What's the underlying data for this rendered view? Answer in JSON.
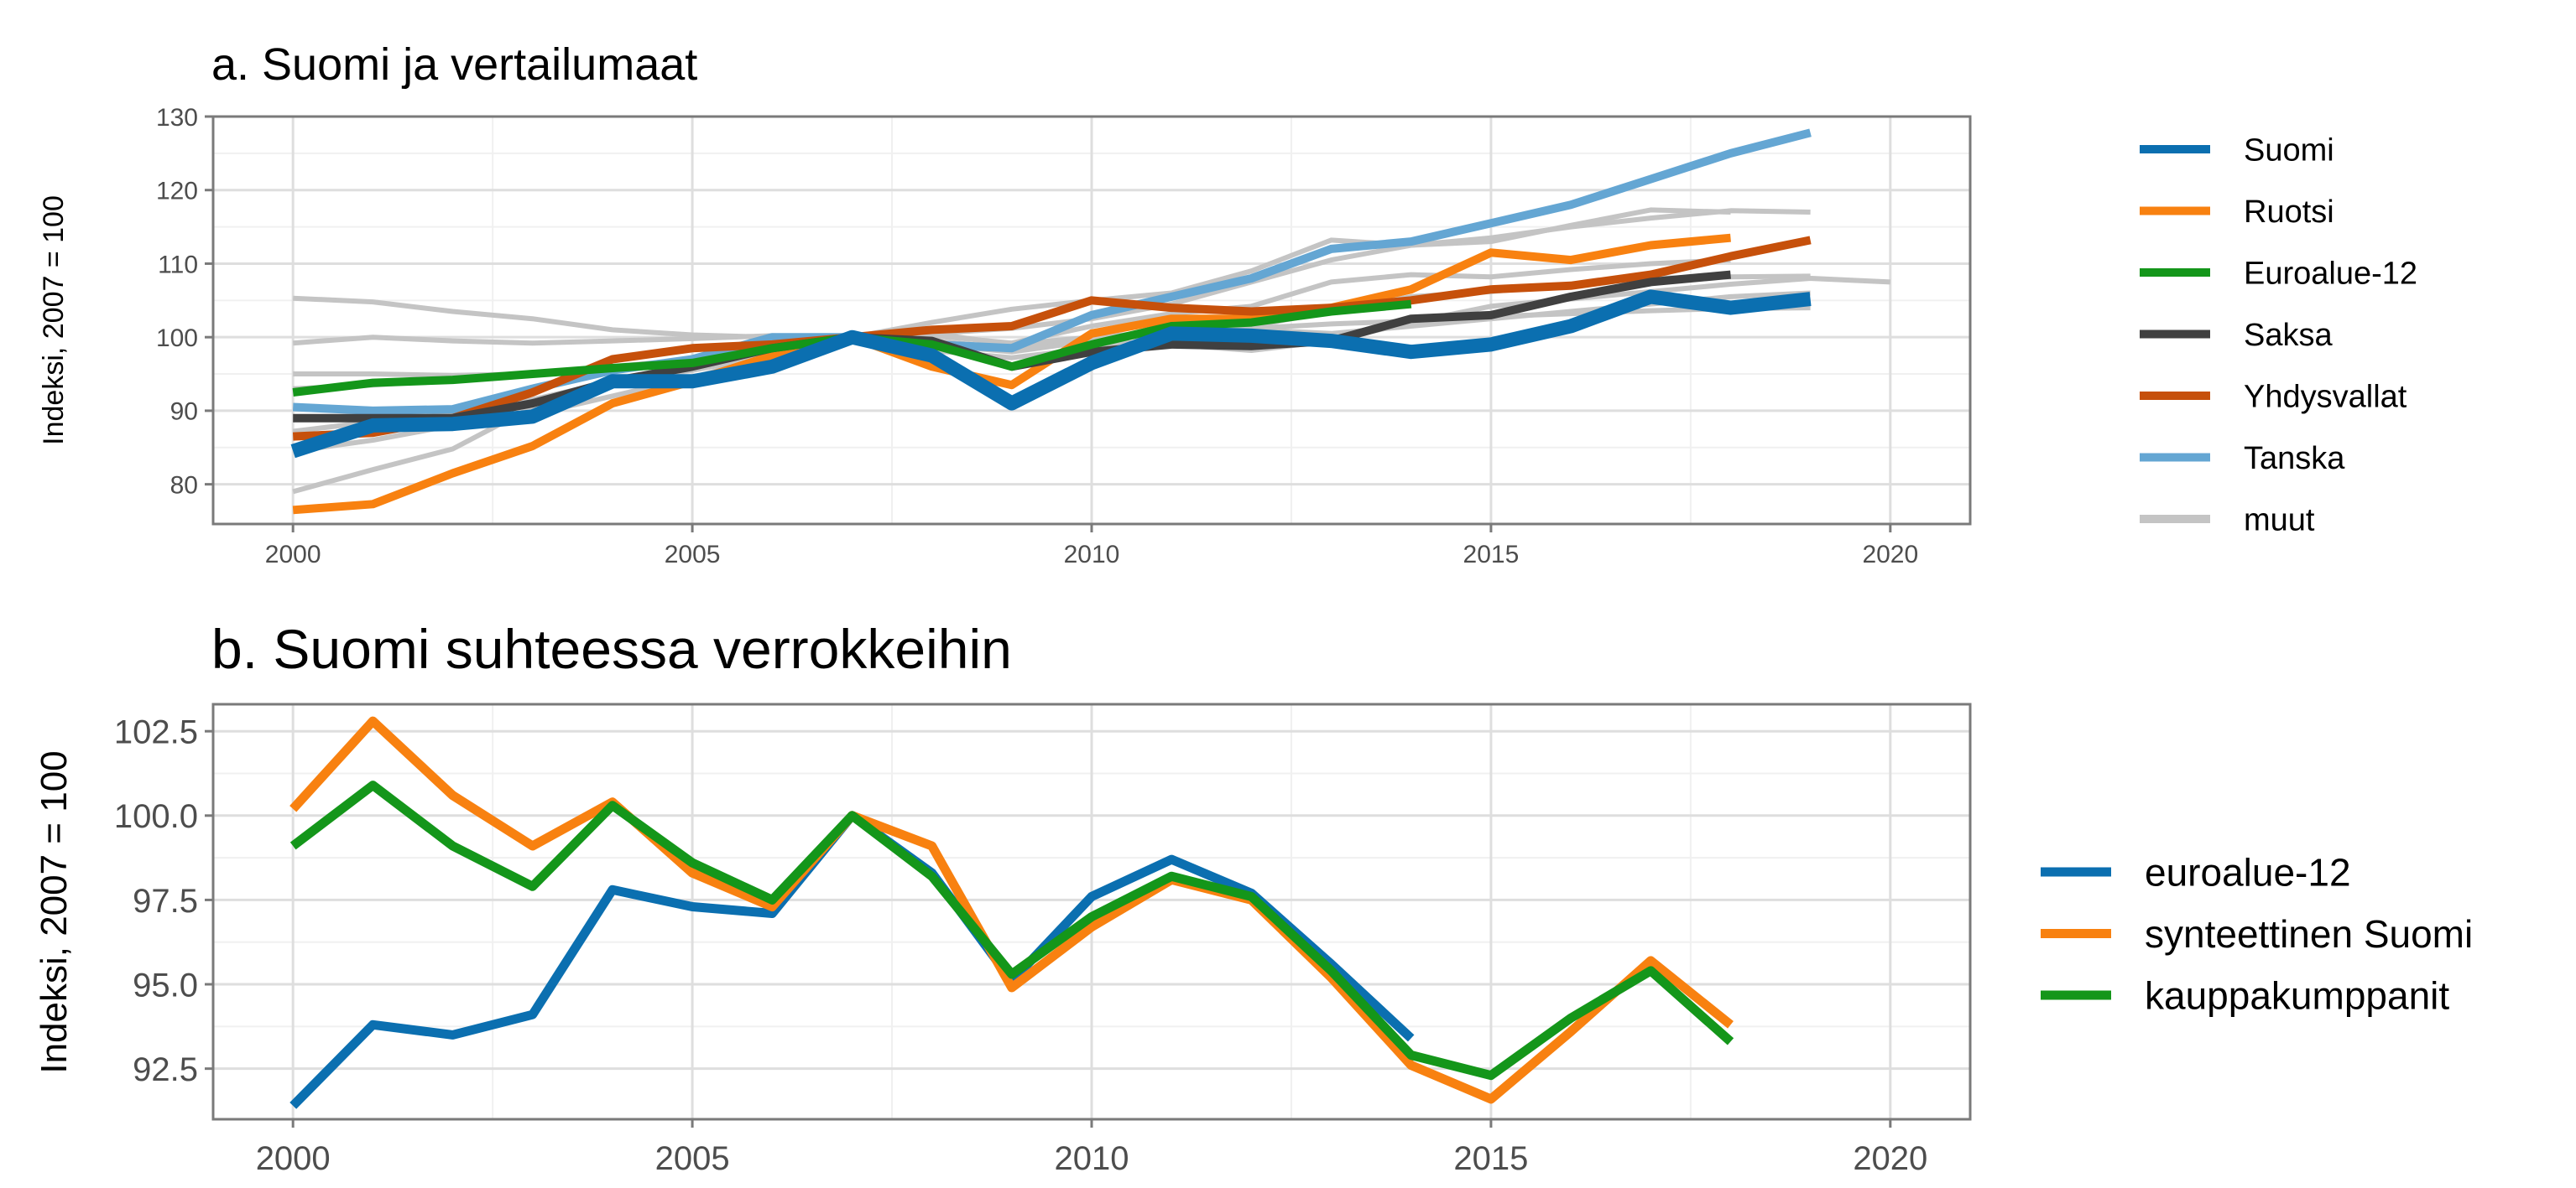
{
  "colors": {
    "Suomi": "#0b6fb0",
    "Ruotsi": "#f88110",
    "Euroalue-12": "#14961a",
    "Saksa": "#404040",
    "Yhdysvallat": "#c6500b",
    "Tanska": "#64a6d3",
    "muut": "#c4c4c4",
    "euroalue-12": "#0b6fb0",
    "synteettinen Suomi": "#f88110",
    "kauppakumppanit": "#14961a"
  },
  "chart_data": [
    {
      "type": "line",
      "title": "a. Suomi ja vertailumaat",
      "xlabel": "",
      "ylabel": "Indeksi, 2007 = 100",
      "xlim": [
        1999,
        2021
      ],
      "ylim": [
        74.6,
        130
      ],
      "xticks": [
        "2000",
        "2005",
        "2010",
        "2015",
        "2020"
      ],
      "yticks": [
        "80",
        "90",
        "100",
        "110",
        "120",
        "130"
      ],
      "grid": true,
      "legend": "right",
      "legend_entries": [
        "Suomi",
        "Ruotsi",
        "Euroalue-12",
        "Saksa",
        "Yhdysvallat",
        "Tanska",
        "muut"
      ],
      "x": [
        2000,
        2001,
        2002,
        2003,
        2004,
        2005,
        2006,
        2007,
        2008,
        2009,
        2010,
        2011,
        2012,
        2013,
        2014,
        2015,
        2016,
        2017,
        2018,
        2019,
        2020
      ],
      "background_series": [
        {
          "name": "muut",
          "values": [
            105.3,
            104.8,
            103.5,
            102.5,
            101.0,
            100.3,
            100.0,
            100.0,
            99.5,
            98.5,
            99.5,
            99.0,
            98.2,
            99.5,
            102.0,
            104.2,
            105.2,
            106.2,
            107.2,
            108.0,
            107.5
          ]
        },
        {
          "name": "muut",
          "values": [
            99.2,
            100.0,
            99.5,
            99.2,
            99.5,
            99.8,
            100.2,
            100.0,
            98.2,
            97.2,
            98.5,
            99.5,
            101.5,
            103.5,
            105.5,
            106.2,
            107.2,
            108.0,
            108.2,
            108.3,
            null
          ]
        },
        {
          "name": "muut",
          "values": [
            95.0,
            95.0,
            94.8,
            95.0,
            96.0,
            97.0,
            98.8,
            100.0,
            100.5,
            101.2,
            102.5,
            104.5,
            107.5,
            110.5,
            112.5,
            113.5,
            115.0,
            116.2,
            117.2,
            117.0,
            null
          ]
        },
        {
          "name": "muut",
          "values": [
            79.0,
            82.0,
            84.8,
            90.5,
            94.0,
            96.5,
            98.2,
            100.0,
            102.0,
            103.8,
            105.0,
            106.0,
            109.0,
            113.2,
            112.5,
            113.0,
            115.2,
            117.3,
            117.0,
            null,
            null
          ]
        },
        {
          "name": "muut",
          "values": [
            87.2,
            88.5,
            89.5,
            91.5,
            94.0,
            95.5,
            97.5,
            100.0,
            100.2,
            99.2,
            101.5,
            103.2,
            104.2,
            107.5,
            108.5,
            108.2,
            109.2,
            110.0,
            110.5,
            null,
            null
          ]
        },
        {
          "name": "muut",
          "values": [
            93.0,
            93.5,
            94.2,
            94.8,
            95.8,
            96.8,
            98.2,
            100.0,
            100.5,
            99.0,
            100.0,
            100.8,
            101.2,
            101.8,
            102.2,
            102.8,
            103.2,
            103.6,
            103.9,
            104.0,
            null
          ]
        },
        {
          "name": "muut",
          "values": [
            84.5,
            86.0,
            88.0,
            89.5,
            92.0,
            94.5,
            97.5,
            100.0,
            99.0,
            98.0,
            99.5,
            100.5,
            101.0,
            100.5,
            101.5,
            102.5,
            103.5,
            104.5,
            105.5,
            106.0,
            null
          ]
        }
      ],
      "series": [
        {
          "name": "Tanska",
          "values": [
            90.5,
            90.0,
            90.2,
            93.0,
            95.5,
            97.0,
            100.0,
            100.0,
            99.0,
            98.5,
            103.0,
            105.5,
            108.0,
            112.0,
            113.0,
            115.5,
            118.0,
            121.5,
            125.0,
            127.8,
            null
          ]
        },
        {
          "name": "Ruotsi",
          "values": [
            76.5,
            77.3,
            81.5,
            85.2,
            91.0,
            94.0,
            97.5,
            100.0,
            96.0,
            93.5,
            100.5,
            102.5,
            102.5,
            104.0,
            106.5,
            111.5,
            110.5,
            112.5,
            113.5,
            null,
            null
          ]
        },
        {
          "name": "Yhdysvallat",
          "values": [
            86.5,
            87.0,
            89.0,
            92.5,
            97.0,
            98.5,
            99.0,
            100.0,
            101.0,
            101.5,
            105.0,
            104.0,
            103.5,
            104.0,
            105.0,
            106.5,
            107.0,
            108.5,
            111.0,
            113.2,
            null
          ]
        },
        {
          "name": "Saksa",
          "values": [
            89.0,
            89.0,
            89.0,
            91.0,
            94.0,
            96.0,
            98.5,
            100.0,
            99.5,
            96.0,
            98.0,
            99.0,
            98.8,
            99.5,
            102.5,
            103.0,
            105.5,
            107.5,
            108.5,
            null,
            null
          ]
        },
        {
          "name": "Euroalue-12",
          "values": [
            92.5,
            93.8,
            94.2,
            95.0,
            95.8,
            96.5,
            98.5,
            100.0,
            99.0,
            96.0,
            99.0,
            101.5,
            102.0,
            103.5,
            104.5,
            null,
            null,
            null,
            null,
            null,
            null
          ]
        },
        {
          "name": "Suomi",
          "values": [
            84.5,
            88.0,
            88.2,
            89.2,
            94.0,
            94.0,
            96.0,
            100.0,
            97.5,
            91.0,
            96.5,
            100.5,
            100.2,
            99.5,
            98.0,
            99.0,
            101.5,
            105.5,
            104.0,
            105.2,
            null
          ]
        }
      ]
    },
    {
      "type": "line",
      "title": "b. Suomi suhteessa verrokkeihin",
      "xlabel": "",
      "ylabel": "Indeksi, 2007 = 100",
      "xlim": [
        1999,
        2021
      ],
      "ylim": [
        91.0,
        103.3
      ],
      "xticks": [
        "2000",
        "2005",
        "2010",
        "2015",
        "2020"
      ],
      "yticks": [
        "92.5",
        "95.0",
        "97.5",
        "100.0",
        "102.5"
      ],
      "grid": true,
      "legend": "right",
      "legend_entries": [
        "euroalue-12",
        "synteettinen Suomi",
        "kauppakumppanit"
      ],
      "x": [
        2000,
        2001,
        2002,
        2003,
        2004,
        2005,
        2006,
        2007,
        2008,
        2009,
        2010,
        2011,
        2012,
        2013,
        2014,
        2015,
        2016,
        2017,
        2018
      ],
      "series": [
        {
          "name": "euroalue-12",
          "values": [
            91.4,
            93.8,
            93.5,
            94.1,
            97.8,
            97.3,
            97.1,
            100.0,
            98.3,
            95.1,
            97.6,
            98.7,
            97.7,
            95.6,
            93.4,
            null,
            null,
            null,
            null
          ]
        },
        {
          "name": "synteettinen Suomi",
          "values": [
            100.2,
            102.8,
            100.6,
            99.1,
            100.4,
            98.3,
            97.3,
            100.0,
            99.1,
            94.9,
            96.7,
            98.1,
            97.5,
            95.2,
            92.6,
            91.6,
            93.6,
            95.7,
            93.8
          ]
        },
        {
          "name": "kauppakumppanit",
          "values": [
            99.1,
            100.9,
            99.1,
            97.9,
            100.3,
            98.6,
            97.5,
            100.0,
            98.2,
            95.3,
            97.0,
            98.2,
            97.6,
            95.4,
            92.9,
            92.3,
            94.0,
            95.4,
            93.3
          ]
        }
      ]
    }
  ]
}
